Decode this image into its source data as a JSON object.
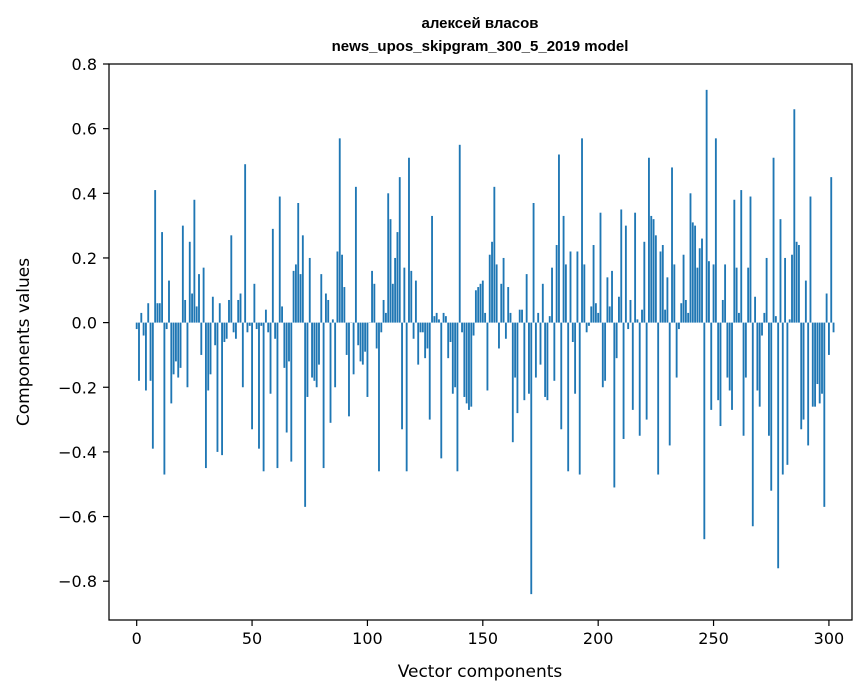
{
  "chart_data": {
    "type": "bar",
    "title_line1": "алексей власов",
    "title_line2": "news_upos_skipgram_300_5_2019 model",
    "xlabel": "Vector components",
    "ylabel": "Components values",
    "xlim": [
      -12,
      310
    ],
    "ylim": [
      -0.92,
      0.8
    ],
    "xticks": [
      0,
      50,
      100,
      150,
      200,
      250,
      300
    ],
    "xtick_labels": [
      "0",
      "50",
      "100",
      "150",
      "200",
      "250",
      "300"
    ],
    "yticks": [
      0.8,
      0.6,
      0.4,
      0.2,
      0.0,
      -0.2,
      -0.4,
      -0.6,
      -0.8
    ],
    "ytick_labels": [
      "0.8",
      "0.6",
      "0.4",
      "0.2",
      "0.0",
      "−0.2",
      "−0.4",
      "−0.6",
      "−0.8"
    ],
    "bar_color": "#1f77b4",
    "grid": false,
    "values": [
      -0.02,
      -0.18,
      0.03,
      -0.04,
      -0.21,
      0.06,
      -0.18,
      -0.39,
      0.41,
      0.06,
      0.06,
      0.28,
      -0.47,
      -0.02,
      0.13,
      -0.25,
      -0.16,
      -0.12,
      -0.17,
      -0.14,
      0.3,
      0.07,
      -0.2,
      0.25,
      0.09,
      0.38,
      0.05,
      0.15,
      -0.1,
      0.17,
      -0.45,
      -0.21,
      -0.16,
      0.08,
      -0.07,
      -0.4,
      0.06,
      -0.41,
      -0.06,
      -0.05,
      0.07,
      0.27,
      -0.03,
      -0.05,
      0.07,
      0.09,
      -0.2,
      0.49,
      -0.03,
      -0.01,
      -0.33,
      0.12,
      -0.02,
      -0.39,
      -0.01,
      -0.46,
      0.04,
      -0.03,
      -0.22,
      0.29,
      -0.05,
      -0.45,
      0.39,
      0.05,
      -0.14,
      -0.34,
      -0.12,
      -0.43,
      0.16,
      0.18,
      0.37,
      0.15,
      0.27,
      -0.57,
      -0.23,
      0.2,
      -0.17,
      -0.18,
      -0.2,
      -0.13,
      0.15,
      -0.45,
      0.09,
      0.07,
      -0.31,
      0.01,
      -0.2,
      0.22,
      0.57,
      0.21,
      0.11,
      -0.1,
      -0.29,
      0.0,
      -0.16,
      0.42,
      -0.07,
      -0.12,
      -0.13,
      -0.09,
      -0.23,
      0.0,
      0.16,
      0.12,
      -0.08,
      -0.46,
      -0.03,
      0.07,
      0.03,
      0.4,
      0.32,
      0.12,
      0.2,
      0.28,
      0.45,
      -0.33,
      0.17,
      -0.46,
      0.51,
      0.16,
      -0.05,
      0.13,
      -0.13,
      -0.03,
      -0.03,
      -0.11,
      -0.08,
      -0.3,
      0.33,
      0.02,
      0.03,
      0.01,
      -0.42,
      0.03,
      0.02,
      -0.11,
      -0.06,
      -0.22,
      -0.2,
      -0.46,
      0.55,
      -0.03,
      -0.23,
      -0.25,
      -0.27,
      -0.26,
      -0.04,
      0.1,
      0.11,
      0.12,
      0.13,
      0.03,
      -0.21,
      0.21,
      0.25,
      0.42,
      0.18,
      -0.08,
      0.12,
      0.2,
      -0.05,
      0.11,
      0.03,
      -0.37,
      -0.17,
      -0.28,
      0.04,
      0.04,
      -0.24,
      0.15,
      -0.22,
      -0.84,
      0.37,
      -0.17,
      0.03,
      -0.13,
      0.12,
      -0.23,
      -0.24,
      0.02,
      0.17,
      -0.18,
      0.24,
      0.52,
      -0.33,
      0.33,
      0.18,
      -0.46,
      0.22,
      -0.06,
      -0.22,
      0.22,
      -0.47,
      0.57,
      0.18,
      -0.03,
      -0.01,
      0.05,
      0.24,
      0.06,
      0.03,
      0.34,
      -0.2,
      -0.18,
      0.14,
      0.05,
      0.16,
      -0.51,
      -0.11,
      0.08,
      0.35,
      -0.36,
      0.3,
      -0.02,
      0.07,
      -0.27,
      0.34,
      0.01,
      -0.35,
      0.04,
      0.25,
      -0.3,
      0.51,
      0.33,
      0.32,
      0.27,
      -0.47,
      0.22,
      0.24,
      0.04,
      0.14,
      -0.38,
      0.48,
      0.18,
      -0.17,
      -0.02,
      0.06,
      0.21,
      0.07,
      0.03,
      0.4,
      0.31,
      0.3,
      0.17,
      0.23,
      0.26,
      -0.67,
      0.72,
      0.19,
      -0.27,
      0.18,
      0.57,
      -0.24,
      -0.32,
      0.07,
      0.18,
      -0.17,
      -0.21,
      -0.27,
      0.38,
      0.17,
      0.03,
      0.41,
      -0.35,
      -0.17,
      0.17,
      0.39,
      -0.63,
      0.08,
      -0.21,
      -0.26,
      -0.04,
      0.03,
      0.2,
      -0.35,
      -0.52,
      0.51,
      0.02,
      -0.76,
      0.32,
      -0.47,
      0.2,
      -0.44,
      0.01,
      0.21,
      0.66,
      0.25,
      0.24,
      -0.33,
      -0.3,
      0.13,
      -0.38,
      0.39,
      -0.26,
      -0.26,
      -0.19,
      -0.25,
      -0.22,
      -0.57,
      0.09,
      -0.1,
      0.45,
      -0.03
    ]
  }
}
